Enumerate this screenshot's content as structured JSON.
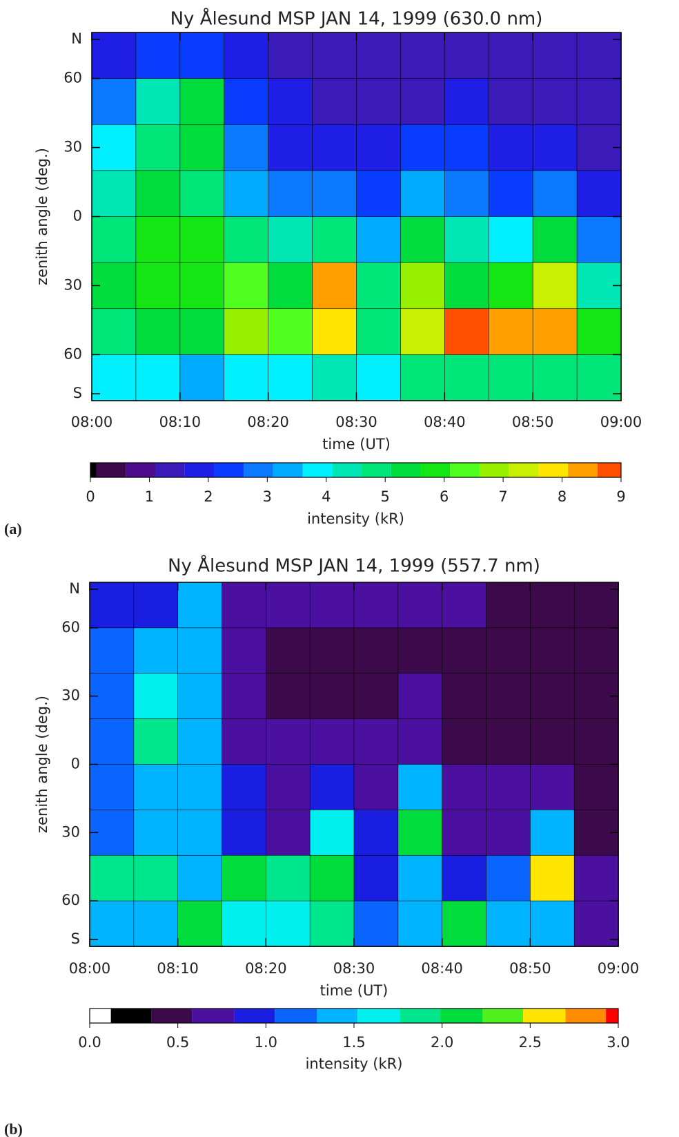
{
  "chart_data": [
    {
      "type": "heatmap",
      "panel_label": "(a)",
      "title": "Ny Ålesund MSP JAN 14, 1999 (630.0 nm)",
      "xlabel": "time (UT)",
      "ylabel": "zenith angle (deg.)",
      "xlim": [
        0,
        60
      ],
      "ylim": [
        -80,
        80
      ],
      "xticks": [
        {
          "value": 0,
          "label": "08:00"
        },
        {
          "value": 10,
          "label": "08:10"
        },
        {
          "value": 20,
          "label": "08:20"
        },
        {
          "value": 30,
          "label": "08:30"
        },
        {
          "value": 40,
          "label": "08:40"
        },
        {
          "value": 50,
          "label": "08:50"
        },
        {
          "value": 60,
          "label": "09:00"
        }
      ],
      "yticks": [
        {
          "value": 77,
          "label": "N"
        },
        60,
        30,
        0,
        {
          "value": -30,
          "label": "30"
        },
        {
          "value": -60,
          "label": "60"
        },
        {
          "value": -77,
          "label": "S"
        }
      ],
      "x": [
        2.5,
        7.5,
        12.5,
        17.5,
        22.5,
        27.5,
        32.5,
        37.5,
        42.5,
        47.5,
        52.5,
        57.5
      ],
      "y": [
        70,
        50,
        30,
        10,
        -10,
        -30,
        -50,
        -70
      ],
      "values": [
        [
          2.0,
          2.5,
          2.5,
          1.8,
          1.3,
          1.2,
          1.2,
          1.2,
          1.3,
          1.2,
          1.2,
          1.2
        ],
        [
          2.8,
          4.5,
          5.5,
          2.3,
          1.6,
          1.4,
          1.3,
          1.5,
          1.7,
          1.5,
          1.3,
          1.2
        ],
        [
          3.8,
          5.0,
          5.5,
          3.0,
          2.0,
          1.8,
          1.6,
          2.5,
          2.2,
          1.8,
          1.6,
          1.3
        ],
        [
          4.5,
          5.5,
          5.0,
          3.5,
          3.0,
          3.0,
          2.5,
          3.5,
          2.6,
          2.5,
          3.0,
          1.8
        ],
        [
          5.0,
          6.0,
          6.0,
          5.0,
          4.2,
          5.0,
          3.5,
          5.5,
          4.5,
          4.0,
          5.5,
          3.0
        ],
        [
          5.5,
          6.0,
          6.0,
          6.5,
          5.5,
          8.5,
          5.0,
          7.0,
          5.5,
          6.0,
          7.5,
          4.5
        ],
        [
          5.0,
          5.5,
          5.5,
          7.0,
          6.5,
          8.0,
          5.0,
          7.5,
          9.0,
          8.5,
          8.5,
          6.0
        ],
        [
          4.0,
          4.0,
          3.5,
          4.0,
          4.0,
          4.5,
          4.0,
          5.0,
          5.0,
          5.0,
          5.0,
          5.0
        ]
      ],
      "colorbar": {
        "label": "intensity (kR)",
        "bounds": [
          0,
          0.1,
          0.6,
          1.1,
          1.6,
          2.1,
          2.6,
          3.1,
          3.6,
          4.1,
          4.6,
          5.1,
          5.6,
          6.1,
          6.6,
          7.1,
          7.6,
          8.1,
          8.6,
          9.0
        ],
        "colors": [
          "#000000",
          "#3c0a4a",
          "#4b0b8c",
          "#3a1ab8",
          "#1e1ee6",
          "#0a3cff",
          "#0a78ff",
          "#00aaff",
          "#00f0ff",
          "#00e6b4",
          "#00e678",
          "#00dc3c",
          "#14e614",
          "#50ff1e",
          "#96f000",
          "#c8f000",
          "#ffe600",
          "#ffa000",
          "#ff5000"
        ],
        "ticks": [
          0,
          1,
          2,
          3,
          4,
          5,
          6,
          7,
          8,
          9
        ]
      }
    },
    {
      "type": "heatmap",
      "panel_label": "(b)",
      "title": "Ny Ålesund MSP JAN 14, 1999 (557.7 nm)",
      "xlabel": "time (UT)",
      "ylabel": "zenith angle (deg.)",
      "xlim": [
        0,
        60
      ],
      "ylim": [
        -80,
        80
      ],
      "xticks": [
        {
          "value": 0,
          "label": "08:00"
        },
        {
          "value": 10,
          "label": "08:10"
        },
        {
          "value": 20,
          "label": "08:20"
        },
        {
          "value": 30,
          "label": "08:30"
        },
        {
          "value": 40,
          "label": "08:40"
        },
        {
          "value": 50,
          "label": "08:50"
        },
        {
          "value": 60,
          "label": "09:00"
        }
      ],
      "yticks": [
        {
          "value": 77,
          "label": "N"
        },
        60,
        30,
        0,
        {
          "value": -30,
          "label": "30"
        },
        {
          "value": -60,
          "label": "60"
        },
        {
          "value": -77,
          "label": "S"
        }
      ],
      "x": [
        2.5,
        7.5,
        12.5,
        17.5,
        22.5,
        27.5,
        32.5,
        37.5,
        42.5,
        47.5,
        52.5,
        57.5
      ],
      "y": [
        70,
        50,
        30,
        10,
        -10,
        -30,
        -50,
        -70
      ],
      "values": [
        [
          0.9,
          1.0,
          1.5,
          0.6,
          0.6,
          0.6,
          0.6,
          0.6,
          0.6,
          0.5,
          0.5,
          0.5
        ],
        [
          1.2,
          1.3,
          1.5,
          0.6,
          0.5,
          0.5,
          0.5,
          0.5,
          0.4,
          0.4,
          0.4,
          0.4
        ],
        [
          1.1,
          1.6,
          1.3,
          0.7,
          0.5,
          0.5,
          0.5,
          0.6,
          0.4,
          0.4,
          0.4,
          0.4
        ],
        [
          1.2,
          1.8,
          1.5,
          0.8,
          0.6,
          0.6,
          0.6,
          0.8,
          0.5,
          0.5,
          0.5,
          0.4
        ],
        [
          1.2,
          1.5,
          1.5,
          0.9,
          0.7,
          1.0,
          0.7,
          1.3,
          0.6,
          0.6,
          0.8,
          0.4
        ],
        [
          1.1,
          1.4,
          1.3,
          1.0,
          0.8,
          1.6,
          0.9,
          2.0,
          0.7,
          0.6,
          1.3,
          0.4
        ],
        [
          1.8,
          1.9,
          1.5,
          2.0,
          1.9,
          2.2,
          1.0,
          1.4,
          1.0,
          1.2,
          2.6,
          0.7
        ],
        [
          1.3,
          1.4,
          2.2,
          1.6,
          1.6,
          1.9,
          1.1,
          1.4,
          2.0,
          1.3,
          1.4,
          0.8
        ]
      ],
      "colorbar": {
        "label": "intensity (kR)",
        "bounds": [
          0,
          0.12,
          0.35,
          0.58,
          0.82,
          1.05,
          1.29,
          1.52,
          1.76,
          1.99,
          2.23,
          2.46,
          2.7,
          2.93,
          3.0
        ],
        "colors": [
          "#ffffff",
          "#000000",
          "#3c0a4a",
          "#4b10a0",
          "#1a1ee0",
          "#0a64ff",
          "#00b4ff",
          "#00f0f0",
          "#00e68c",
          "#00dc3c",
          "#50f01e",
          "#ffe600",
          "#ff8c00",
          "#ff0000"
        ],
        "ticks": [
          {
            "value": 0,
            "label": "0.0"
          },
          0.5,
          {
            "value": 1,
            "label": "1.0"
          },
          1.5,
          {
            "value": 2,
            "label": "2.0"
          },
          2.5,
          {
            "value": 3,
            "label": "3.0"
          }
        ]
      }
    }
  ]
}
